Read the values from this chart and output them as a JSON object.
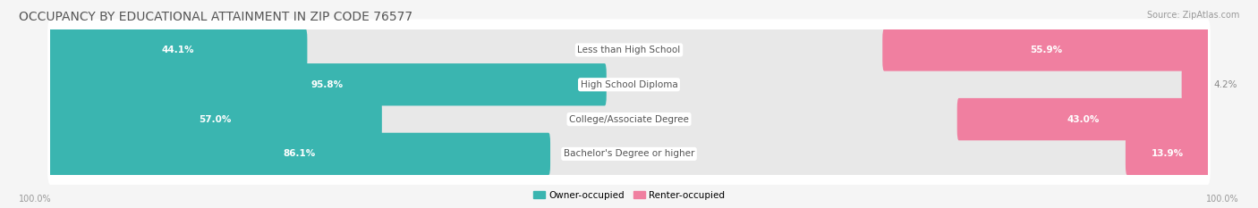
{
  "title": "OCCUPANCY BY EDUCATIONAL ATTAINMENT IN ZIP CODE 76577",
  "source": "Source: ZipAtlas.com",
  "categories": [
    "Less than High School",
    "High School Diploma",
    "College/Associate Degree",
    "Bachelor's Degree or higher"
  ],
  "owner_pct": [
    44.1,
    95.8,
    57.0,
    86.1
  ],
  "renter_pct": [
    55.9,
    4.2,
    43.0,
    13.9
  ],
  "owner_color": "#3ab5b0",
  "renter_color": "#f07fa0",
  "bg_color": "#f5f5f5",
  "bar_bg_color": "#e8e8e8",
  "row_bg_color": "#ffffff",
  "title_color": "#555555",
  "source_color": "#999999",
  "pct_inside_color": "#ffffff",
  "pct_outside_color": "#888888",
  "label_color": "#555555",
  "title_fontsize": 10,
  "label_fontsize": 7.5,
  "pct_fontsize": 7.5,
  "tick_fontsize": 7,
  "source_fontsize": 7,
  "legend_fontsize": 7.5,
  "bar_height": 0.62,
  "inside_threshold": 12
}
